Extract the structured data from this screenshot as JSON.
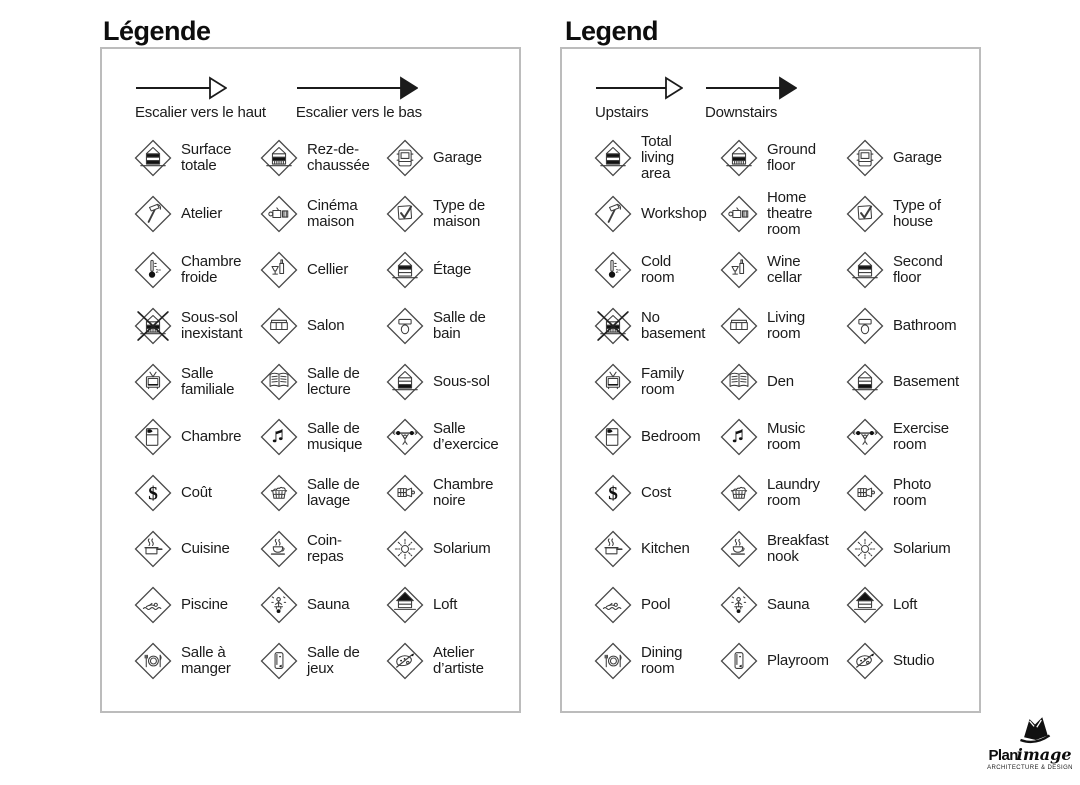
{
  "panels": [
    {
      "id": "french",
      "title": "Légende",
      "arrows": [
        {
          "label": "Escalier vers le haut",
          "style": "open"
        },
        {
          "label": "Escalier vers le bas",
          "style": "filled"
        }
      ],
      "items": [
        {
          "icon": "total-living-area",
          "label": "Surface totale"
        },
        {
          "icon": "ground-floor",
          "label": "Rez-de-chaussée"
        },
        {
          "icon": "garage",
          "label": "Garage"
        },
        {
          "icon": "workshop",
          "label": "Atelier"
        },
        {
          "icon": "home-theatre",
          "label": "Cinéma maison"
        },
        {
          "icon": "type-of-house",
          "label": "Type de maison"
        },
        {
          "icon": "cold-room",
          "label": "Chambre froide"
        },
        {
          "icon": "wine-cellar",
          "label": "Cellier"
        },
        {
          "icon": "second-floor",
          "label": "Étage"
        },
        {
          "icon": "no-basement",
          "label": "Sous-sol inexistant"
        },
        {
          "icon": "living-room",
          "label": "Salon"
        },
        {
          "icon": "bathroom",
          "label": "Salle de bain"
        },
        {
          "icon": "family-room",
          "label": "Salle familiale"
        },
        {
          "icon": "den",
          "label": "Salle de lecture"
        },
        {
          "icon": "basement",
          "label": "Sous-sol"
        },
        {
          "icon": "bedroom",
          "label": "Chambre"
        },
        {
          "icon": "music-room",
          "label": "Salle de musique"
        },
        {
          "icon": "exercise-room",
          "label": "Salle d’exercice"
        },
        {
          "icon": "cost",
          "label": "Coût"
        },
        {
          "icon": "laundry-room",
          "label": "Salle de lavage"
        },
        {
          "icon": "photo-room",
          "label": "Chambre noire"
        },
        {
          "icon": "kitchen",
          "label": "Cuisine"
        },
        {
          "icon": "breakfast-nook",
          "label": "Coin-repas"
        },
        {
          "icon": "solarium",
          "label": "Solarium"
        },
        {
          "icon": "pool",
          "label": "Piscine"
        },
        {
          "icon": "sauna",
          "label": "Sauna"
        },
        {
          "icon": "loft",
          "label": "Loft"
        },
        {
          "icon": "dining-room",
          "label": "Salle à manger"
        },
        {
          "icon": "playroom",
          "label": "Salle de jeux"
        },
        {
          "icon": "studio",
          "label": "Atelier d’artiste"
        }
      ]
    },
    {
      "id": "english",
      "title": "Legend",
      "arrows": [
        {
          "label": "Upstairs",
          "style": "open"
        },
        {
          "label": "Downstairs",
          "style": "filled"
        }
      ],
      "items": [
        {
          "icon": "total-living-area",
          "label": "Total living area"
        },
        {
          "icon": "ground-floor",
          "label": "Ground floor"
        },
        {
          "icon": "garage",
          "label": "Garage"
        },
        {
          "icon": "workshop",
          "label": "Workshop"
        },
        {
          "icon": "home-theatre",
          "label": "Home theatre room"
        },
        {
          "icon": "type-of-house",
          "label": "Type of house"
        },
        {
          "icon": "cold-room",
          "label": "Cold room"
        },
        {
          "icon": "wine-cellar",
          "label": "Wine cellar"
        },
        {
          "icon": "second-floor",
          "label": "Second floor"
        },
        {
          "icon": "no-basement",
          "label": "No basement"
        },
        {
          "icon": "living-room",
          "label": "Living room"
        },
        {
          "icon": "bathroom",
          "label": "Bathroom"
        },
        {
          "icon": "family-room",
          "label": "Family room"
        },
        {
          "icon": "den",
          "label": "Den"
        },
        {
          "icon": "basement",
          "label": "Basement"
        },
        {
          "icon": "bedroom",
          "label": "Bedroom"
        },
        {
          "icon": "music-room",
          "label": "Music room"
        },
        {
          "icon": "exercise-room",
          "label": "Exercise room"
        },
        {
          "icon": "cost",
          "label": "Cost"
        },
        {
          "icon": "laundry-room",
          "label": "Laundry room"
        },
        {
          "icon": "photo-room",
          "label": "Photo room"
        },
        {
          "icon": "kitchen",
          "label": "Kitchen"
        },
        {
          "icon": "breakfast-nook",
          "label": "Breakfast nook"
        },
        {
          "icon": "solarium",
          "label": "Solarium"
        },
        {
          "icon": "pool",
          "label": "Pool"
        },
        {
          "icon": "sauna",
          "label": "Sauna"
        },
        {
          "icon": "loft",
          "label": "Loft"
        },
        {
          "icon": "dining-room",
          "label": "Dining room"
        },
        {
          "icon": "playroom",
          "label": "Playroom"
        },
        {
          "icon": "studio",
          "label": "Studio"
        }
      ]
    }
  ],
  "logo": {
    "brand_bold": "Plan",
    "brand_italic": "image",
    "tagline": "ARCHITECTURE & DESIGN"
  },
  "colors": {
    "text": "#1b1b1b",
    "panel_border": "#bcbcbc",
    "icon_stroke": "#3d3d3d",
    "icon_fill": "#111111"
  }
}
